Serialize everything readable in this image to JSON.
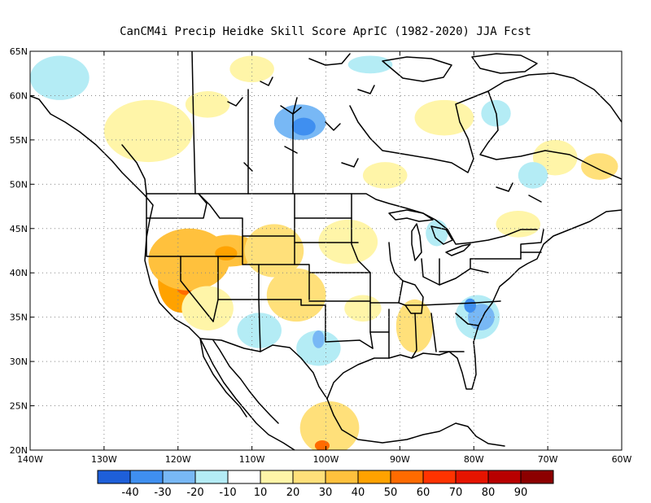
{
  "title": "CanCM4i Precip Heidke Skill Score AprIC (1982-2020) JJA Fcst",
  "map": {
    "lon_range": [
      -140,
      -60
    ],
    "lat_range": [
      20,
      65
    ],
    "lat_ticks": [
      {
        "value": 65,
        "label": "65N"
      },
      {
        "value": 60,
        "label": "60N"
      },
      {
        "value": 55,
        "label": "55N"
      },
      {
        "value": 50,
        "label": "50N"
      },
      {
        "value": 45,
        "label": "45N"
      },
      {
        "value": 40,
        "label": "40N"
      },
      {
        "value": 35,
        "label": "35N"
      },
      {
        "value": 30,
        "label": "30N"
      },
      {
        "value": 25,
        "label": "25N"
      },
      {
        "value": 20,
        "label": "20N"
      }
    ],
    "lon_ticks": [
      {
        "value": -140,
        "label": "140W"
      },
      {
        "value": -130,
        "label": "130W"
      },
      {
        "value": -120,
        "label": "120W"
      },
      {
        "value": -110,
        "label": "110W"
      },
      {
        "value": -100,
        "label": "100W"
      },
      {
        "value": -90,
        "label": "90W"
      },
      {
        "value": -80,
        "label": "80W"
      },
      {
        "value": -70,
        "label": "70W"
      },
      {
        "value": -60,
        "label": "60W"
      }
    ],
    "gridlines": true
  },
  "colorbar": {
    "colors": [
      "#1e5fd9",
      "#3f8ff0",
      "#78b8f5",
      "#b4ecf5",
      "#ffffff",
      "#fff5a8",
      "#ffe07a",
      "#ffc13d",
      "#ffa200",
      "#ff6b00",
      "#ff3300",
      "#e61400",
      "#b80000",
      "#8c0000"
    ],
    "labels": [
      "-40",
      "-30",
      "-20",
      "-10",
      "10",
      "20",
      "30",
      "40",
      "50",
      "60",
      "70",
      "80",
      "90"
    ]
  },
  "field_patches": [
    {
      "lon": -119.5,
      "lat": 39.0,
      "rx": 3.2,
      "ry": 3.5,
      "color": "#ffa200"
    },
    {
      "lon": -119.0,
      "lat": 38.7,
      "rx": 1.3,
      "ry": 1.2,
      "color": "#ff6b00"
    },
    {
      "lon": -118.5,
      "lat": 41.5,
      "rx": 5.5,
      "ry": 3.5,
      "color": "#ffc13d"
    },
    {
      "lon": -113.0,
      "lat": 42.5,
      "rx": 4.0,
      "ry": 1.8,
      "color": "#ffc13d"
    },
    {
      "lon": -113.5,
      "lat": 42.2,
      "rx": 1.5,
      "ry": 0.8,
      "color": "#ffa200"
    },
    {
      "lon": -107.0,
      "lat": 42.5,
      "rx": 4.0,
      "ry": 3.0,
      "color": "#ffe07a"
    },
    {
      "lon": -104.0,
      "lat": 37.5,
      "rx": 4.0,
      "ry": 3.0,
      "color": "#ffe07a"
    },
    {
      "lon": -97.0,
      "lat": 43.5,
      "rx": 4.0,
      "ry": 2.5,
      "color": "#fff5a8"
    },
    {
      "lon": -88.0,
      "lat": 34.0,
      "rx": 2.5,
      "ry": 3.0,
      "color": "#ffe07a"
    },
    {
      "lon": -116.0,
      "lat": 36.0,
      "rx": 3.5,
      "ry": 2.5,
      "color": "#fff5a8"
    },
    {
      "lon": -109.0,
      "lat": 33.5,
      "rx": 3.0,
      "ry": 2.0,
      "color": "#b4ecf5"
    },
    {
      "lon": -101.0,
      "lat": 31.5,
      "rx": 3.0,
      "ry": 2.0,
      "color": "#b4ecf5"
    },
    {
      "lon": -101.0,
      "lat": 32.5,
      "rx": 0.8,
      "ry": 1.0,
      "color": "#78b8f5"
    },
    {
      "lon": -79.5,
      "lat": 35.0,
      "rx": 3.0,
      "ry": 2.5,
      "color": "#b4ecf5"
    },
    {
      "lon": -79.0,
      "lat": 35.0,
      "rx": 1.8,
      "ry": 1.5,
      "color": "#78b8f5"
    },
    {
      "lon": -80.5,
      "lat": 36.3,
      "rx": 0.8,
      "ry": 0.8,
      "color": "#3f8ff0"
    },
    {
      "lon": -99.5,
      "lat": 22.5,
      "rx": 4.0,
      "ry": 3.0,
      "color": "#ffe07a"
    },
    {
      "lon": -100.5,
      "lat": 20.5,
      "rx": 1.0,
      "ry": 0.6,
      "color": "#ff6b00"
    },
    {
      "lon": -103.5,
      "lat": 57.0,
      "rx": 3.5,
      "ry": 2.0,
      "color": "#78b8f5"
    },
    {
      "lon": -103.0,
      "lat": 56.5,
      "rx": 1.6,
      "ry": 1.0,
      "color": "#3f8ff0"
    },
    {
      "lon": -124.0,
      "lat": 56.0,
      "rx": 6.0,
      "ry": 3.5,
      "color": "#fff5a8"
    },
    {
      "lon": -136.0,
      "lat": 62.0,
      "rx": 4.0,
      "ry": 2.5,
      "color": "#b4ecf5"
    },
    {
      "lon": -84.0,
      "lat": 57.5,
      "rx": 4.0,
      "ry": 2.0,
      "color": "#fff5a8"
    },
    {
      "lon": -77.0,
      "lat": 58.0,
      "rx": 2.0,
      "ry": 1.5,
      "color": "#b4ecf5"
    },
    {
      "lon": -69.0,
      "lat": 53.0,
      "rx": 3.0,
      "ry": 2.0,
      "color": "#fff5a8"
    },
    {
      "lon": -72.0,
      "lat": 51.0,
      "rx": 2.0,
      "ry": 1.5,
      "color": "#b4ecf5"
    },
    {
      "lon": -110.0,
      "lat": 63.0,
      "rx": 3.0,
      "ry": 1.5,
      "color": "#fff5a8"
    },
    {
      "lon": -94.0,
      "lat": 63.5,
      "rx": 3.0,
      "ry": 1.0,
      "color": "#b4ecf5"
    },
    {
      "lon": -92.0,
      "lat": 51.0,
      "rx": 3.0,
      "ry": 1.5,
      "color": "#fff5a8"
    },
    {
      "lon": -85.0,
      "lat": 44.5,
      "rx": 1.5,
      "ry": 1.5,
      "color": "#b4ecf5"
    },
    {
      "lon": -74.0,
      "lat": 45.5,
      "rx": 3.0,
      "ry": 1.5,
      "color": "#fff5a8"
    },
    {
      "lon": -95.0,
      "lat": 36.0,
      "rx": 2.5,
      "ry": 1.5,
      "color": "#fff5a8"
    },
    {
      "lon": -63.0,
      "lat": 52.0,
      "rx": 2.5,
      "ry": 1.5,
      "color": "#ffe07a"
    },
    {
      "lon": -116.0,
      "lat": 59.0,
      "rx": 3.0,
      "ry": 1.5,
      "color": "#fff5a8"
    }
  ]
}
